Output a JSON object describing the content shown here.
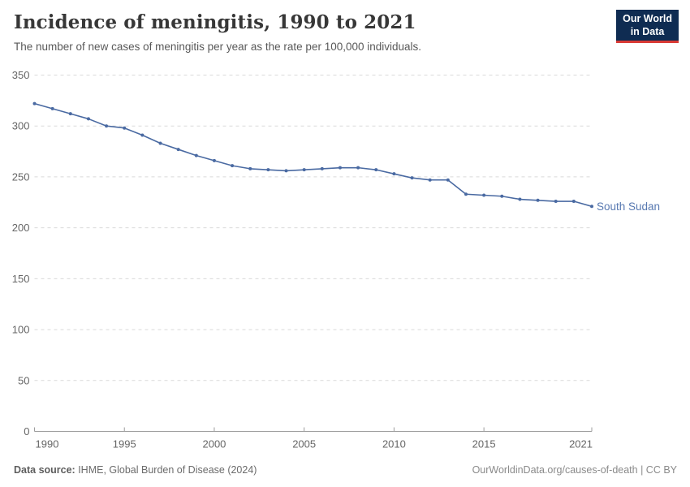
{
  "logo": {
    "line1": "Our World",
    "line2": "in Data",
    "bg_color": "#0f2c52",
    "underline_color": "#d93a35"
  },
  "footer": {
    "source_label": "Data source:",
    "source_text": " IHME, Global Burden of Disease (2024)",
    "right_text": "OurWorldinData.org/causes-of-death | CC BY"
  },
  "chart_data": {
    "type": "line",
    "title": "Incidence of meningitis, 1990 to 2021",
    "subtitle": "The number of new cases of meningitis per year as the rate per 100,000 individuals.",
    "xlabel": "",
    "ylabel": "",
    "xlim": [
      1990,
      2021
    ],
    "ylim": [
      0,
      350
    ],
    "xticks": [
      1990,
      1995,
      2000,
      2005,
      2010,
      2015,
      2021
    ],
    "yticks": [
      0,
      50,
      100,
      150,
      200,
      250,
      300,
      350
    ],
    "grid": "horizontal-dashed",
    "legend": "end-of-line-label",
    "colors": {
      "grid": "#d9d9d9",
      "axis": "#9e9e9e",
      "tick_text": "#666666"
    },
    "series": [
      {
        "name": "South Sudan",
        "color": "#4a6aa2",
        "label_color": "#5879b1",
        "x": [
          1990,
          1991,
          1992,
          1993,
          1994,
          1995,
          1996,
          1997,
          1998,
          1999,
          2000,
          2001,
          2002,
          2003,
          2004,
          2005,
          2006,
          2007,
          2008,
          2009,
          2010,
          2011,
          2012,
          2013,
          2014,
          2015,
          2016,
          2017,
          2018,
          2019,
          2020,
          2021
        ],
        "values": [
          322,
          317,
          312,
          307,
          300,
          298,
          291,
          283,
          277,
          271,
          266,
          261,
          258,
          257,
          256,
          257,
          258,
          259,
          259,
          257,
          253,
          249,
          247,
          247,
          233,
          232,
          231,
          228,
          227,
          226,
          226,
          221
        ]
      }
    ]
  }
}
